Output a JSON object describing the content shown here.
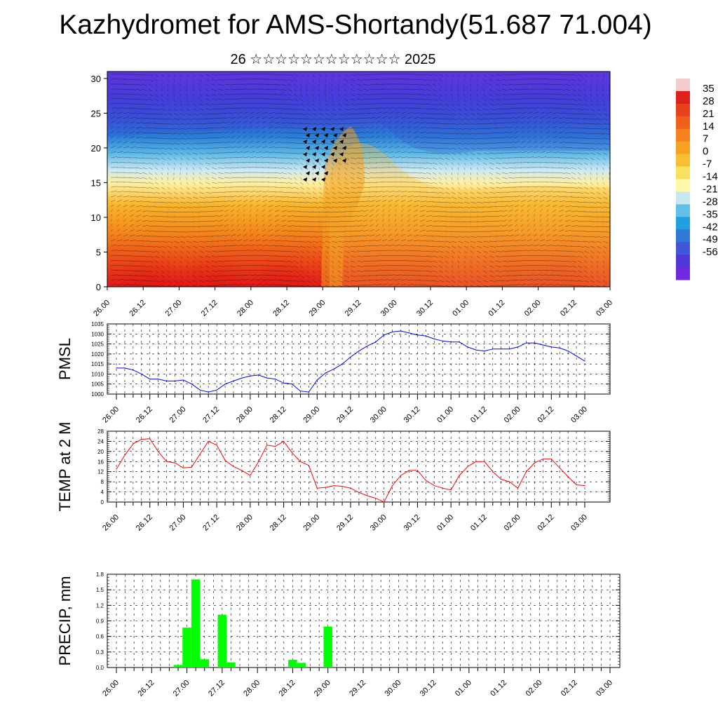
{
  "title": "Kazhydromet for AMS-Shortandy(51.687 71.004)",
  "subtitle": "26 ☆☆☆☆☆☆☆☆☆☆☆☆ 2025",
  "time_labels": [
    "26.00",
    "26.12",
    "27.00",
    "27.12",
    "28.00",
    "28.12",
    "29.00",
    "29.12",
    "30.00",
    "30.12",
    "01.00",
    "01.12",
    "02.00",
    "02.12",
    "03.00"
  ],
  "chart_data": [
    {
      "type": "heatmap",
      "title": "",
      "xlabel": "",
      "ylabel": "",
      "y_ticks": [
        "0",
        "5",
        "10",
        "15",
        "20",
        "25",
        "30"
      ],
      "ylim": [
        0,
        31
      ],
      "colorbar_labels": [
        "35",
        "28",
        "21",
        "14",
        "7",
        "0",
        "-7",
        "-14",
        "-21",
        "-28",
        "-35",
        "-42",
        "-49",
        "-56"
      ],
      "colorbar_colors": [
        "#f4cccc",
        "#e0201c",
        "#e8401c",
        "#f0601c",
        "#f8801c",
        "#f8a020",
        "#f8c030",
        "#f8e060",
        "#fff8a8",
        "#c8e8f0",
        "#60c0e8",
        "#20a0e0",
        "#3078d8",
        "#4058d8",
        "#5038d8",
        "#7028e0"
      ],
      "colorbar_ticks": [
        "35",
        "28",
        "21",
        "14",
        "7",
        "0",
        "-7",
        "-14",
        "-21",
        "-28",
        "-35",
        "-42",
        "-49",
        "-56"
      ]
    },
    {
      "type": "line",
      "ylabel": "PMSL",
      "line_color": "#0000ff",
      "ylim": [
        1000,
        1035
      ],
      "y_ticks": [
        "1000",
        "1005",
        "1010",
        "1015",
        "1020",
        "1025",
        "1030",
        "1035"
      ],
      "x": [
        0,
        1,
        2,
        3,
        4,
        5,
        6,
        7,
        8,
        9,
        10,
        11,
        12,
        13,
        14,
        15,
        16,
        17,
        18,
        19,
        20,
        21,
        22,
        23,
        24,
        25,
        26,
        27,
        28,
        29,
        30,
        31,
        32,
        33,
        34,
        35,
        36,
        37,
        38,
        39,
        40,
        41,
        42,
        43,
        44,
        45,
        46,
        47,
        48,
        49,
        50,
        51,
        52,
        53,
        54,
        55,
        56
      ],
      "values": [
        1013,
        1013,
        1012,
        1010,
        1007.5,
        1007.5,
        1006.5,
        1006.5,
        1007,
        1005,
        1002,
        1001,
        1002,
        1005,
        1006.5,
        1008,
        1009,
        1009.5,
        1008,
        1007.5,
        1005.5,
        1005,
        1001.5,
        1001,
        1007,
        1010.5,
        1012.5,
        1015,
        1018.5,
        1021.5,
        1024,
        1026,
        1029.5,
        1031,
        1031.5,
        1030.5,
        1029.5,
        1029,
        1027.5,
        1026.5,
        1026,
        1026,
        1023.5,
        1022,
        1021.5,
        1022.5,
        1022.5,
        1022.5,
        1023.5,
        1025.5,
        1025.5,
        1024.5,
        1023.5,
        1023,
        1021.5,
        1019,
        1016.5
      ]
    },
    {
      "type": "line",
      "ylabel": "TEMP at 2 M",
      "line_color": "#ff0000",
      "ylim": [
        0,
        28
      ],
      "y_ticks": [
        "0",
        "4",
        "8",
        "12",
        "16",
        "20",
        "24",
        "28"
      ],
      "x": [
        0,
        1,
        2,
        3,
        4,
        5,
        6,
        7,
        8,
        9,
        10,
        11,
        12,
        13,
        14,
        15,
        16,
        17,
        18,
        19,
        20,
        21,
        22,
        23,
        24,
        25,
        26,
        27,
        28,
        29,
        30,
        31,
        32,
        33,
        34,
        35,
        36,
        37,
        38,
        39,
        40,
        41,
        42,
        43,
        44,
        45,
        46,
        47,
        48,
        49,
        50,
        51,
        52,
        53,
        54,
        55,
        56
      ],
      "values": [
        13,
        18.5,
        23,
        24.8,
        25,
        20,
        16,
        15.5,
        13.5,
        13.8,
        19,
        24,
        22.5,
        16.5,
        14,
        12.5,
        10.5,
        16,
        22.5,
        22,
        24,
        19.5,
        16,
        14.5,
        5.5,
        5.8,
        6.5,
        6.2,
        5.5,
        3.8,
        2.5,
        1.5,
        0,
        6.5,
        10.5,
        12.5,
        12.5,
        8.5,
        6.5,
        5.5,
        4.8,
        10.5,
        14,
        16,
        16,
        12,
        9,
        8,
        5.5,
        12,
        15.5,
        17,
        17,
        13.5,
        10,
        6.8,
        6.5
      ]
    },
    {
      "type": "bar",
      "ylabel": "PRECIP, mm",
      "bar_color": "#00ff00",
      "ylim": [
        0,
        1.8
      ],
      "y_ticks": [
        "0.0",
        "0.3",
        "0.6",
        "0.9",
        "1.2",
        "1.5",
        "1.8"
      ],
      "x": [
        7,
        8,
        9,
        10,
        12,
        13,
        20,
        21,
        24
      ],
      "values": [
        0.05,
        0.77,
        1.7,
        0.16,
        1.02,
        0.1,
        0.15,
        0.09,
        0.79
      ]
    }
  ]
}
